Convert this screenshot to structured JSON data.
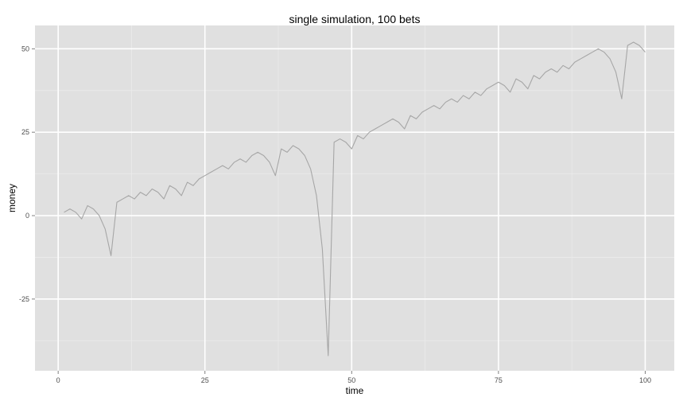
{
  "chart_data": {
    "type": "line",
    "title": "single simulation, 100 bets",
    "xlabel": "time",
    "ylabel": "money",
    "xlim": [
      -3.95,
      104.95
    ],
    "ylim": [
      -46.5,
      57
    ],
    "x_ticks": [
      0,
      25,
      50,
      75,
      100
    ],
    "x_tick_labels": [
      "0",
      "25",
      "50",
      "75",
      "100"
    ],
    "y_ticks": [
      -25,
      0,
      25,
      50
    ],
    "y_tick_labels": [
      "-25",
      "0",
      "25",
      "50"
    ],
    "grid": true,
    "legend": "none",
    "series": [
      {
        "color": "#a6a6a6",
        "x": [
          1,
          2,
          3,
          4,
          5,
          6,
          7,
          8,
          9,
          10,
          11,
          12,
          13,
          14,
          15,
          16,
          17,
          18,
          19,
          20,
          21,
          22,
          23,
          24,
          25,
          26,
          27,
          28,
          29,
          30,
          31,
          32,
          33,
          34,
          35,
          36,
          37,
          38,
          39,
          40,
          41,
          42,
          43,
          44,
          45,
          46,
          47,
          48,
          49,
          50,
          51,
          52,
          53,
          54,
          55,
          56,
          57,
          58,
          59,
          60,
          61,
          62,
          63,
          64,
          65,
          66,
          67,
          68,
          69,
          70,
          71,
          72,
          73,
          74,
          75,
          76,
          77,
          78,
          79,
          80,
          81,
          82,
          83,
          84,
          85,
          86,
          87,
          88,
          89,
          90,
          91,
          92,
          93,
          94,
          95,
          96,
          97,
          98,
          99,
          100
        ],
        "y": [
          1,
          2,
          1,
          -1,
          3,
          2,
          0,
          -4,
          -12,
          4,
          5,
          6,
          5,
          7,
          6,
          8,
          7,
          5,
          9,
          8,
          6,
          10,
          9,
          11,
          12,
          13,
          14,
          15,
          14,
          16,
          17,
          16,
          18,
          19,
          18,
          16,
          12,
          20,
          19,
          21,
          20,
          18,
          14,
          6,
          -10,
          -42,
          22,
          23,
          22,
          20,
          24,
          23,
          25,
          26,
          27,
          28,
          29,
          28,
          26,
          30,
          29,
          31,
          32,
          33,
          32,
          34,
          35,
          34,
          36,
          35,
          37,
          36,
          38,
          39,
          40,
          39,
          37,
          41,
          40,
          38,
          42,
          41,
          43,
          44,
          43,
          45,
          44,
          46,
          47,
          48,
          49,
          50,
          49,
          47,
          43,
          35,
          51,
          52,
          51,
          49
        ]
      }
    ]
  },
  "colors": {
    "panel_background": "#e0e0e0",
    "gridline_major": "#ffffff",
    "gridline_minor": "#ebebeb",
    "line": "#a6a6a6",
    "tick_text": "#4d4d4d"
  }
}
